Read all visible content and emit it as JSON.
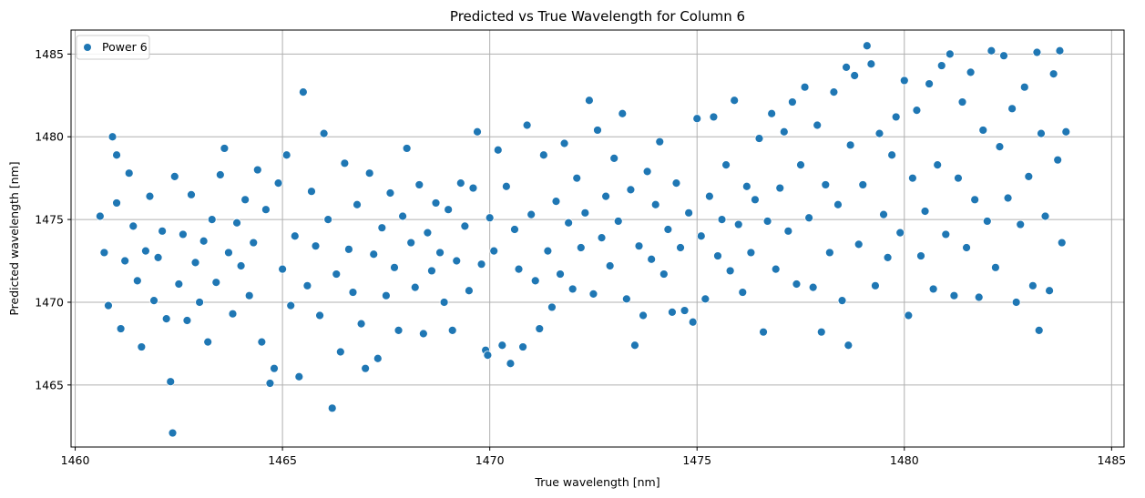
{
  "chart_data": {
    "type": "scatter",
    "title": "Predicted vs True Wavelength for Column 6",
    "xlabel": "True wavelength [nm]",
    "ylabel": "Predicted wavelength [nm]",
    "xlim": [
      1459.9,
      1485.3
    ],
    "ylim": [
      1461.25,
      1486.45
    ],
    "xticks": [
      1460,
      1465,
      1470,
      1475,
      1480,
      1485
    ],
    "yticks": [
      1465,
      1470,
      1475,
      1480,
      1485
    ],
    "grid": true,
    "legend": "top-left",
    "color": "#1f77b4",
    "series": [
      {
        "name": "Power 6",
        "points": [
          [
            1460.6,
            1475.2
          ],
          [
            1460.7,
            1473.0
          ],
          [
            1460.8,
            1469.8
          ],
          [
            1460.9,
            1480.0
          ],
          [
            1461.0,
            1478.9
          ],
          [
            1461.0,
            1476.0
          ],
          [
            1461.1,
            1468.4
          ],
          [
            1461.2,
            1472.5
          ],
          [
            1461.3,
            1477.8
          ],
          [
            1461.4,
            1474.6
          ],
          [
            1461.5,
            1471.3
          ],
          [
            1461.6,
            1467.3
          ],
          [
            1461.7,
            1473.1
          ],
          [
            1461.8,
            1476.4
          ],
          [
            1461.9,
            1470.1
          ],
          [
            1462.0,
            1472.7
          ],
          [
            1462.1,
            1474.3
          ],
          [
            1462.2,
            1469.0
          ],
          [
            1462.3,
            1465.2
          ],
          [
            1462.35,
            1462.1
          ],
          [
            1462.4,
            1477.6
          ],
          [
            1462.5,
            1471.1
          ],
          [
            1462.6,
            1474.1
          ],
          [
            1462.7,
            1468.9
          ],
          [
            1462.8,
            1476.5
          ],
          [
            1462.9,
            1472.4
          ],
          [
            1463.0,
            1470.0
          ],
          [
            1463.1,
            1473.7
          ],
          [
            1463.2,
            1467.6
          ],
          [
            1463.3,
            1475.0
          ],
          [
            1463.4,
            1471.2
          ],
          [
            1463.5,
            1477.7
          ],
          [
            1463.6,
            1479.3
          ],
          [
            1463.7,
            1473.0
          ],
          [
            1463.8,
            1469.3
          ],
          [
            1463.9,
            1474.8
          ],
          [
            1464.0,
            1472.2
          ],
          [
            1464.1,
            1476.2
          ],
          [
            1464.2,
            1470.4
          ],
          [
            1464.3,
            1473.6
          ],
          [
            1464.4,
            1478.0
          ],
          [
            1464.5,
            1467.6
          ],
          [
            1464.6,
            1475.6
          ],
          [
            1464.7,
            1465.1
          ],
          [
            1464.8,
            1466.0
          ],
          [
            1464.9,
            1477.2
          ],
          [
            1465.0,
            1472.0
          ],
          [
            1465.1,
            1478.9
          ],
          [
            1465.2,
            1469.8
          ],
          [
            1465.3,
            1474.0
          ],
          [
            1465.4,
            1465.5
          ],
          [
            1465.5,
            1482.7
          ],
          [
            1465.6,
            1471.0
          ],
          [
            1465.7,
            1476.7
          ],
          [
            1465.8,
            1473.4
          ],
          [
            1465.9,
            1469.2
          ],
          [
            1466.0,
            1480.2
          ],
          [
            1466.1,
            1475.0
          ],
          [
            1466.2,
            1463.6
          ],
          [
            1466.3,
            1471.7
          ],
          [
            1466.4,
            1467.0
          ],
          [
            1466.5,
            1478.4
          ],
          [
            1466.6,
            1473.2
          ],
          [
            1466.7,
            1470.6
          ],
          [
            1466.8,
            1475.9
          ],
          [
            1466.9,
            1468.7
          ],
          [
            1467.0,
            1466.0
          ],
          [
            1467.1,
            1477.8
          ],
          [
            1467.2,
            1472.9
          ],
          [
            1467.3,
            1466.6
          ],
          [
            1467.4,
            1474.5
          ],
          [
            1467.5,
            1470.4
          ],
          [
            1467.6,
            1476.6
          ],
          [
            1467.7,
            1472.1
          ],
          [
            1467.8,
            1468.3
          ],
          [
            1467.9,
            1475.2
          ],
          [
            1468.0,
            1479.3
          ],
          [
            1468.1,
            1473.6
          ],
          [
            1468.2,
            1470.9
          ],
          [
            1468.3,
            1477.1
          ],
          [
            1468.4,
            1468.1
          ],
          [
            1468.5,
            1474.2
          ],
          [
            1468.6,
            1471.9
          ],
          [
            1468.7,
            1476.0
          ],
          [
            1468.8,
            1473.0
          ],
          [
            1468.9,
            1470.0
          ],
          [
            1469.0,
            1475.6
          ],
          [
            1469.1,
            1468.3
          ],
          [
            1469.2,
            1472.5
          ],
          [
            1469.3,
            1477.2
          ],
          [
            1469.4,
            1474.6
          ],
          [
            1469.5,
            1470.7
          ],
          [
            1469.6,
            1476.9
          ],
          [
            1469.7,
            1480.3
          ],
          [
            1469.8,
            1472.3
          ],
          [
            1469.9,
            1467.1
          ],
          [
            1469.95,
            1466.8
          ],
          [
            1470.0,
            1475.1
          ],
          [
            1470.1,
            1473.1
          ],
          [
            1470.2,
            1479.2
          ],
          [
            1470.3,
            1467.4
          ],
          [
            1470.4,
            1477.0
          ],
          [
            1470.5,
            1466.3
          ],
          [
            1470.6,
            1474.4
          ],
          [
            1470.7,
            1472.0
          ],
          [
            1470.8,
            1467.3
          ],
          [
            1470.9,
            1480.7
          ],
          [
            1471.0,
            1475.3
          ],
          [
            1471.1,
            1471.3
          ],
          [
            1471.2,
            1468.4
          ],
          [
            1471.3,
            1478.9
          ],
          [
            1471.4,
            1473.1
          ],
          [
            1471.5,
            1469.7
          ],
          [
            1471.6,
            1476.1
          ],
          [
            1471.7,
            1471.7
          ],
          [
            1471.8,
            1479.6
          ],
          [
            1471.9,
            1474.8
          ],
          [
            1472.0,
            1470.8
          ],
          [
            1472.1,
            1477.5
          ],
          [
            1472.2,
            1473.3
          ],
          [
            1472.3,
            1475.4
          ],
          [
            1472.4,
            1482.2
          ],
          [
            1472.5,
            1470.5
          ],
          [
            1472.6,
            1480.4
          ],
          [
            1472.7,
            1473.9
          ],
          [
            1472.8,
            1476.4
          ],
          [
            1472.9,
            1472.2
          ],
          [
            1473.0,
            1478.7
          ],
          [
            1473.1,
            1474.9
          ],
          [
            1473.2,
            1481.4
          ],
          [
            1473.3,
            1470.2
          ],
          [
            1473.4,
            1476.8
          ],
          [
            1473.5,
            1467.4
          ],
          [
            1473.6,
            1473.4
          ],
          [
            1473.7,
            1469.2
          ],
          [
            1473.8,
            1477.9
          ],
          [
            1473.9,
            1472.6
          ],
          [
            1474.0,
            1475.9
          ],
          [
            1474.1,
            1479.7
          ],
          [
            1474.2,
            1471.7
          ],
          [
            1474.3,
            1474.4
          ],
          [
            1474.4,
            1469.4
          ],
          [
            1474.5,
            1477.2
          ],
          [
            1474.6,
            1473.3
          ],
          [
            1474.7,
            1469.5
          ],
          [
            1474.8,
            1475.4
          ],
          [
            1474.9,
            1468.8
          ],
          [
            1475.0,
            1481.1
          ],
          [
            1475.1,
            1474.0
          ],
          [
            1475.2,
            1470.2
          ],
          [
            1475.3,
            1476.4
          ],
          [
            1475.4,
            1481.2
          ],
          [
            1475.5,
            1472.8
          ],
          [
            1475.6,
            1475.0
          ],
          [
            1475.7,
            1478.3
          ],
          [
            1475.8,
            1471.9
          ],
          [
            1475.9,
            1482.2
          ],
          [
            1476.0,
            1474.7
          ],
          [
            1476.1,
            1470.6
          ],
          [
            1476.2,
            1477.0
          ],
          [
            1476.3,
            1473.0
          ],
          [
            1476.4,
            1476.2
          ],
          [
            1476.5,
            1479.9
          ],
          [
            1476.6,
            1468.2
          ],
          [
            1476.7,
            1474.9
          ],
          [
            1476.8,
            1481.4
          ],
          [
            1476.9,
            1472.0
          ],
          [
            1477.0,
            1476.9
          ],
          [
            1477.1,
            1480.3
          ],
          [
            1477.2,
            1474.3
          ],
          [
            1477.3,
            1482.1
          ],
          [
            1477.4,
            1471.1
          ],
          [
            1477.5,
            1478.3
          ],
          [
            1477.6,
            1483.0
          ],
          [
            1477.7,
            1475.1
          ],
          [
            1477.8,
            1470.9
          ],
          [
            1477.9,
            1480.7
          ],
          [
            1478.0,
            1468.2
          ],
          [
            1478.1,
            1477.1
          ],
          [
            1478.2,
            1473.0
          ],
          [
            1478.3,
            1482.7
          ],
          [
            1478.4,
            1475.9
          ],
          [
            1478.5,
            1470.1
          ],
          [
            1478.6,
            1484.2
          ],
          [
            1478.65,
            1467.4
          ],
          [
            1478.7,
            1479.5
          ],
          [
            1478.8,
            1483.7
          ],
          [
            1478.9,
            1473.5
          ],
          [
            1479.0,
            1477.1
          ],
          [
            1479.1,
            1485.5
          ],
          [
            1479.2,
            1484.4
          ],
          [
            1479.3,
            1471.0
          ],
          [
            1479.4,
            1480.2
          ],
          [
            1479.5,
            1475.3
          ],
          [
            1479.6,
            1472.7
          ],
          [
            1479.7,
            1478.9
          ],
          [
            1479.8,
            1481.2
          ],
          [
            1479.9,
            1474.2
          ],
          [
            1480.0,
            1483.4
          ],
          [
            1480.1,
            1469.2
          ],
          [
            1480.2,
            1477.5
          ],
          [
            1480.3,
            1481.6
          ],
          [
            1480.4,
            1472.8
          ],
          [
            1480.5,
            1475.5
          ],
          [
            1480.6,
            1483.2
          ],
          [
            1480.7,
            1470.8
          ],
          [
            1480.8,
            1478.3
          ],
          [
            1480.9,
            1484.3
          ],
          [
            1481.0,
            1474.1
          ],
          [
            1481.1,
            1485.0
          ],
          [
            1481.2,
            1470.4
          ],
          [
            1481.3,
            1477.5
          ],
          [
            1481.4,
            1482.1
          ],
          [
            1481.5,
            1473.3
          ],
          [
            1481.6,
            1483.9
          ],
          [
            1481.7,
            1476.2
          ],
          [
            1481.8,
            1470.3
          ],
          [
            1481.9,
            1480.4
          ],
          [
            1482.0,
            1474.9
          ],
          [
            1482.1,
            1485.2
          ],
          [
            1482.2,
            1472.1
          ],
          [
            1482.3,
            1479.4
          ],
          [
            1482.4,
            1484.9
          ],
          [
            1482.5,
            1476.3
          ],
          [
            1482.6,
            1481.7
          ],
          [
            1482.7,
            1470.0
          ],
          [
            1482.8,
            1474.7
          ],
          [
            1482.9,
            1483.0
          ],
          [
            1483.0,
            1477.6
          ],
          [
            1483.1,
            1471.0
          ],
          [
            1483.2,
            1485.1
          ],
          [
            1483.25,
            1468.3
          ],
          [
            1483.3,
            1480.2
          ],
          [
            1483.4,
            1475.2
          ],
          [
            1483.5,
            1470.7
          ],
          [
            1483.6,
            1483.8
          ],
          [
            1483.7,
            1478.6
          ],
          [
            1483.75,
            1485.2
          ],
          [
            1483.8,
            1473.6
          ],
          [
            1483.9,
            1480.3
          ]
        ]
      }
    ]
  }
}
